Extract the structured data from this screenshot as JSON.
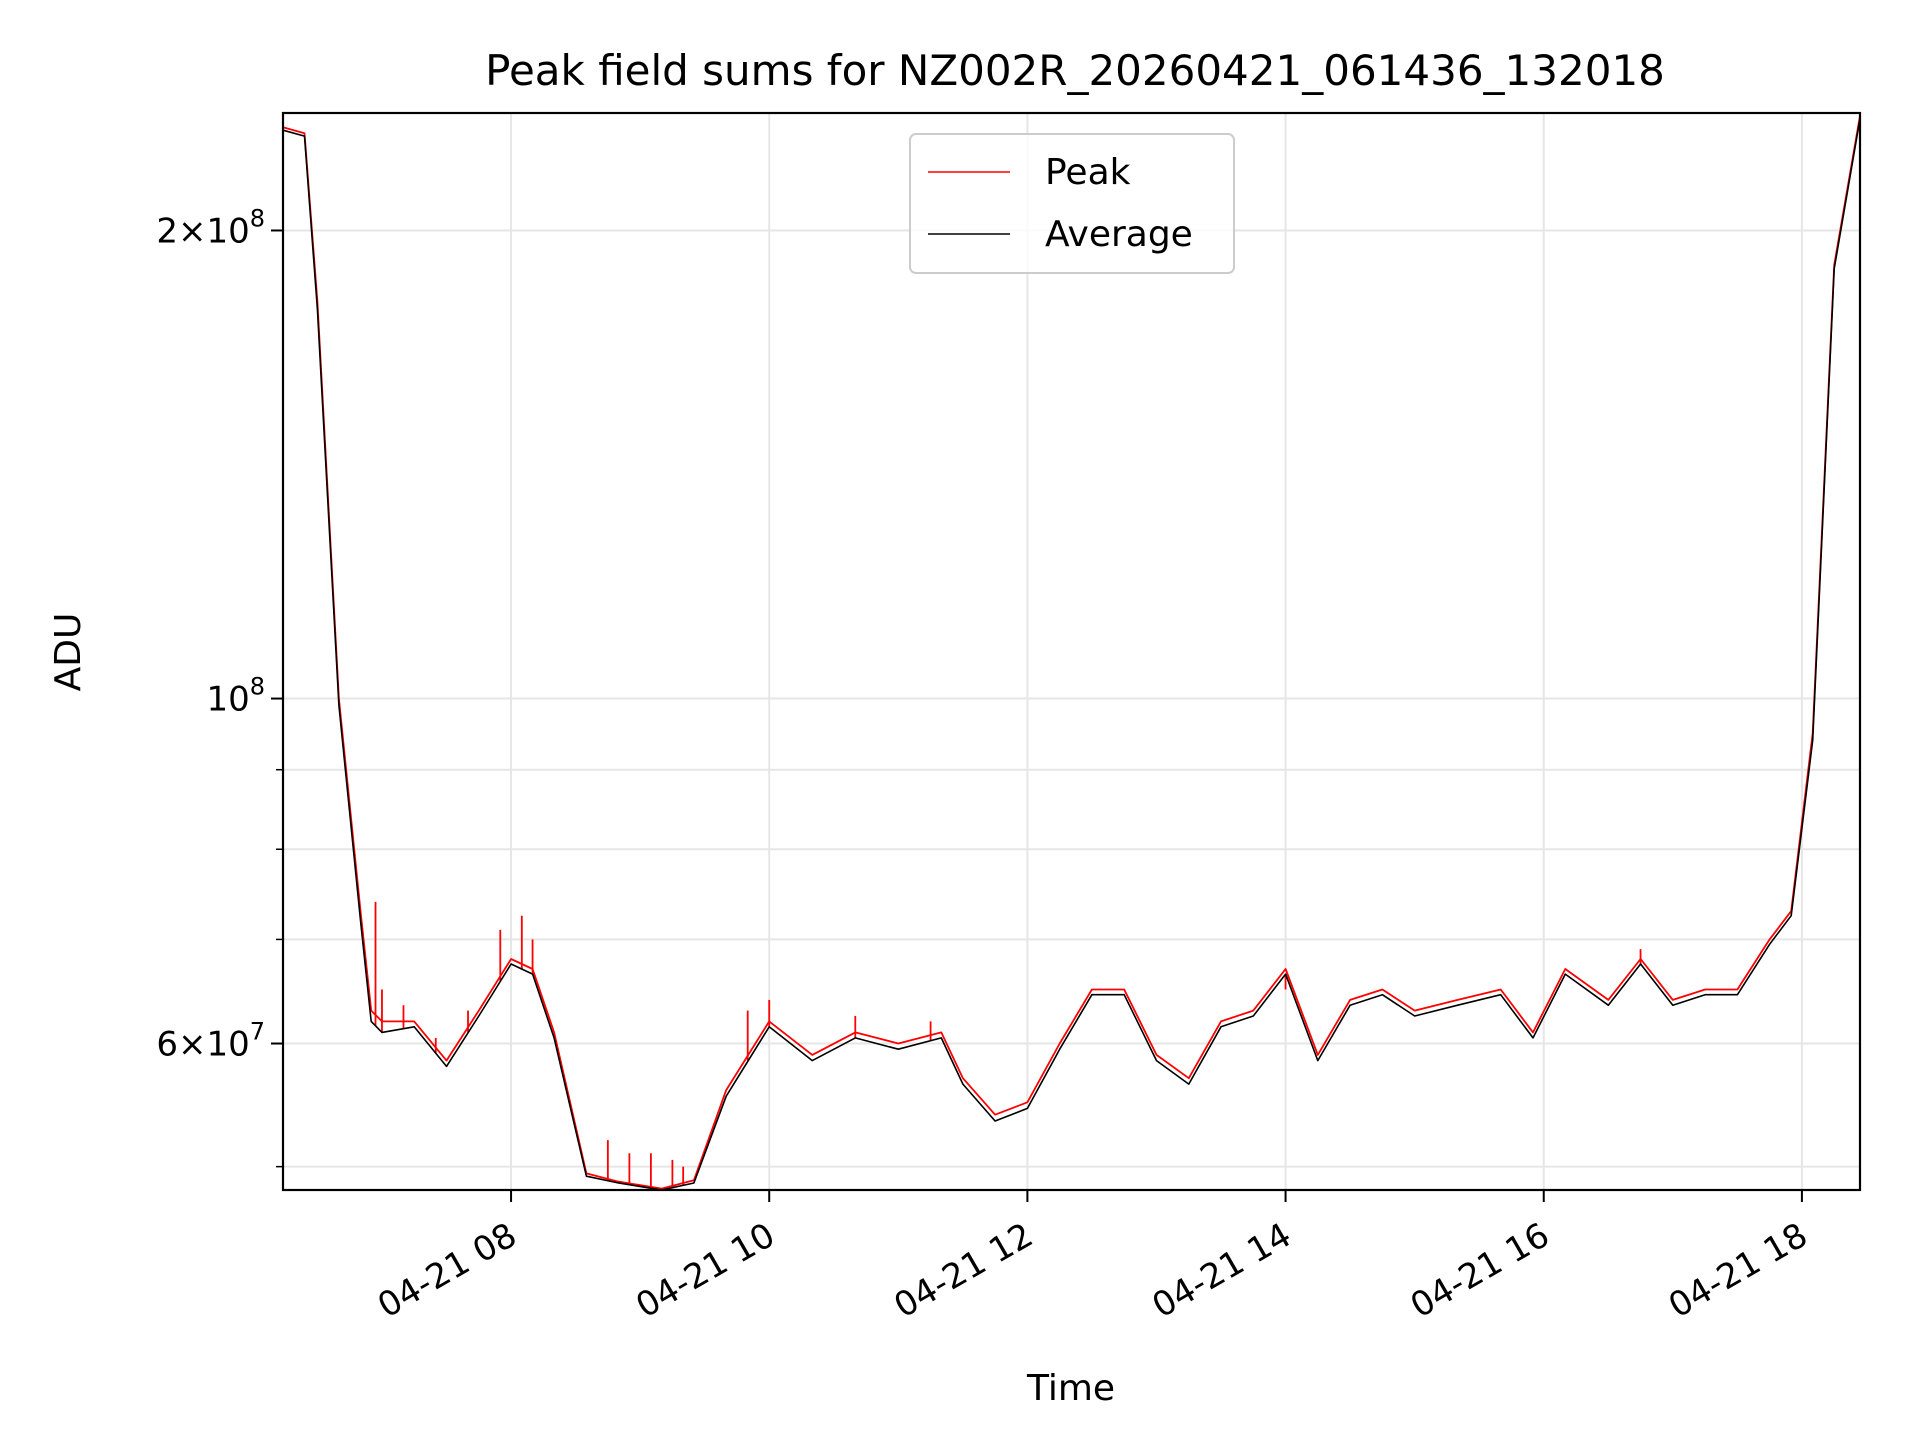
{
  "chart_data": {
    "type": "line",
    "title": "Peak field sums for NZ002R_20260421_061436_132018",
    "xlabel": "Time",
    "ylabel": "ADU",
    "yscale": "log",
    "grid": true,
    "legend_position": "top-center",
    "xlim": [
      "04-21 06:14",
      "04-21 18:27"
    ],
    "ylim": [
      48300000,
      238000000
    ],
    "x_ticks": [
      "04-21 08:00",
      "04-21 10:00",
      "04-21 12:00",
      "04-21 14:00",
      "04-21 16:00",
      "04-21 18:00"
    ],
    "x_tick_labels": [
      "04-21 08",
      "04-21 10",
      "04-21 12",
      "04-21 14",
      "04-21 16",
      "04-21 18"
    ],
    "y_major_ticks": [
      {
        "value": 60000000,
        "mantissa": "6",
        "exp": "7"
      },
      {
        "value": 100000000,
        "mantissa": "",
        "exp": "8"
      },
      {
        "value": 200000000,
        "mantissa": "2",
        "exp": "8"
      }
    ],
    "y_minor_ticks": [
      50000000,
      70000000,
      80000000,
      90000000
    ],
    "series": [
      {
        "name": "Peak",
        "color": "#ff0000",
        "x": [
          "04-21 06:14",
          "04-21 06:24",
          "04-21 06:30",
          "04-21 06:40",
          "04-21 06:50",
          "04-21 06:55",
          "04-21 07:00",
          "04-21 07:15",
          "04-21 07:30",
          "04-21 07:45",
          "04-21 08:00",
          "04-21 08:10",
          "04-21 08:20",
          "04-21 08:35",
          "04-21 08:50",
          "04-21 09:10",
          "04-21 09:25",
          "04-21 09:40",
          "04-21 10:00",
          "04-21 10:20",
          "04-21 10:40",
          "04-21 11:00",
          "04-21 11:20",
          "04-21 11:30",
          "04-21 11:45",
          "04-21 12:00",
          "04-21 12:15",
          "04-21 12:30",
          "04-21 12:45",
          "04-21 13:00",
          "04-21 13:15",
          "04-21 13:30",
          "04-21 13:45",
          "04-21 14:00",
          "04-21 14:15",
          "04-21 14:30",
          "04-21 14:45",
          "04-21 15:00",
          "04-21 15:20",
          "04-21 15:40",
          "04-21 15:55",
          "04-21 16:10",
          "04-21 16:30",
          "04-21 16:45",
          "04-21 17:00",
          "04-21 17:15",
          "04-21 17:30",
          "04-21 17:45",
          "04-21 17:55",
          "04-21 18:05",
          "04-21 18:15",
          "04-21 18:27"
        ],
        "y": [
          233000000,
          231000000,
          180000000,
          100000000,
          73000000,
          63000000,
          62000000,
          62000000,
          58500000,
          63000000,
          68000000,
          67000000,
          61000000,
          49500000,
          48900000,
          48400000,
          49000000,
          56000000,
          62000000,
          59000000,
          61000000,
          60000000,
          61000000,
          57000000,
          54000000,
          55000000,
          60000000,
          65000000,
          65000000,
          59000000,
          57000000,
          62000000,
          63000000,
          67000000,
          59000000,
          64000000,
          65000000,
          63000000,
          64000000,
          65000000,
          61000000,
          67000000,
          64000000,
          68000000,
          64000000,
          65000000,
          65000000,
          70000000,
          73000000,
          95000000,
          190000000,
          237000000
        ],
        "spikes": [
          {
            "x": "04-21 06:57",
            "y": 74000000
          },
          {
            "x": "04-21 07:00",
            "y": 65000000
          },
          {
            "x": "04-21 07:10",
            "y": 63500000
          },
          {
            "x": "04-21 07:25",
            "y": 60500000
          },
          {
            "x": "04-21 07:40",
            "y": 63000000
          },
          {
            "x": "04-21 07:55",
            "y": 71000000
          },
          {
            "x": "04-21 08:05",
            "y": 72500000
          },
          {
            "x": "04-21 08:10",
            "y": 70000000
          },
          {
            "x": "04-21 08:45",
            "y": 52000000
          },
          {
            "x": "04-21 08:55",
            "y": 51000000
          },
          {
            "x": "04-21 09:05",
            "y": 51000000
          },
          {
            "x": "04-21 09:15",
            "y": 50500000
          },
          {
            "x": "04-21 09:20",
            "y": 50000000
          },
          {
            "x": "04-21 09:50",
            "y": 63000000
          },
          {
            "x": "04-21 10:00",
            "y": 64000000
          },
          {
            "x": "04-21 10:40",
            "y": 62500000
          },
          {
            "x": "04-21 11:15",
            "y": 62000000
          },
          {
            "x": "04-21 14:00",
            "y": 65000000
          },
          {
            "x": "04-21 16:45",
            "y": 69000000
          }
        ]
      },
      {
        "name": "Average",
        "color": "#000000",
        "x": [
          "04-21 06:14",
          "04-21 06:24",
          "04-21 06:30",
          "04-21 06:40",
          "04-21 06:50",
          "04-21 06:55",
          "04-21 07:00",
          "04-21 07:15",
          "04-21 07:30",
          "04-21 07:45",
          "04-21 08:00",
          "04-21 08:10",
          "04-21 08:20",
          "04-21 08:35",
          "04-21 08:50",
          "04-21 09:10",
          "04-21 09:25",
          "04-21 09:40",
          "04-21 10:00",
          "04-21 10:20",
          "04-21 10:40",
          "04-21 11:00",
          "04-21 11:20",
          "04-21 11:30",
          "04-21 11:45",
          "04-21 12:00",
          "04-21 12:15",
          "04-21 12:30",
          "04-21 12:45",
          "04-21 13:00",
          "04-21 13:15",
          "04-21 13:30",
          "04-21 13:45",
          "04-21 14:00",
          "04-21 14:15",
          "04-21 14:30",
          "04-21 14:45",
          "04-21 15:00",
          "04-21 15:20",
          "04-21 15:40",
          "04-21 15:55",
          "04-21 16:10",
          "04-21 16:30",
          "04-21 16:45",
          "04-21 17:00",
          "04-21 17:15",
          "04-21 17:30",
          "04-21 17:45",
          "04-21 17:55",
          "04-21 18:05",
          "04-21 18:15",
          "04-21 18:27"
        ],
        "y": [
          232000000,
          230000000,
          178000000,
          99000000,
          72000000,
          62000000,
          61000000,
          61500000,
          58000000,
          62500000,
          67500000,
          66500000,
          60500000,
          49300000,
          48800000,
          48300000,
          48800000,
          55500000,
          61500000,
          58500000,
          60500000,
          59500000,
          60500000,
          56500000,
          53500000,
          54500000,
          59500000,
          64500000,
          64500000,
          58500000,
          56500000,
          61500000,
          62500000,
          66500000,
          58500000,
          63500000,
          64500000,
          62500000,
          63500000,
          64500000,
          60500000,
          66500000,
          63500000,
          67500000,
          63500000,
          64500000,
          64500000,
          69500000,
          72500000,
          94000000,
          189000000,
          236000000
        ]
      }
    ]
  }
}
